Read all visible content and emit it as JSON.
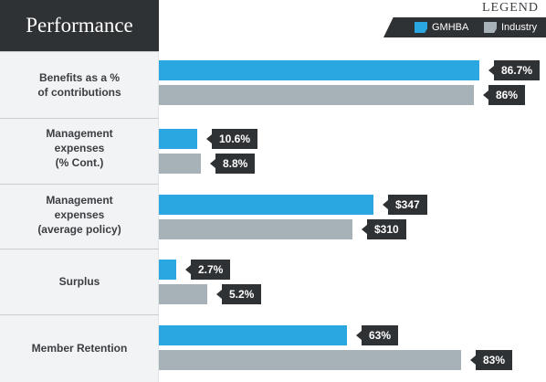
{
  "title": "Performance",
  "legend": {
    "title": "LEGEND",
    "items": [
      {
        "name": "GMHBA",
        "color": "#2aa7e0"
      },
      {
        "name": "Industry",
        "color": "#a7b1b8"
      }
    ]
  },
  "chart_data": {
    "type": "bar",
    "orientation": "horizontal",
    "categories": [
      "Benefits as a % of contributions",
      "Management expenses (% Cont.)",
      "Management expenses (average policy)",
      "Surplus",
      "Member Retention"
    ],
    "category_lines": [
      [
        "Benefits as a %",
        "of contributions"
      ],
      [
        "Management",
        "expenses",
        "(% Cont.)"
      ],
      [
        "Management",
        "expenses",
        "(average policy)"
      ],
      [
        "Surplus"
      ],
      [
        "Member Retention"
      ]
    ],
    "series": [
      {
        "name": "GMHBA",
        "color": "#2aa7e0",
        "values": [
          86.7,
          10.6,
          347,
          2.7,
          63
        ],
        "labels": [
          "86.7%",
          "10.6%",
          "$347",
          "2.7%",
          "63%"
        ]
      },
      {
        "name": "Industry",
        "color": "#a7b1b8",
        "values": [
          86,
          8.8,
          310,
          5.2,
          83
        ],
        "labels": [
          "86%",
          "8.8%",
          "$310",
          "5.2%",
          "83%"
        ]
      }
    ],
    "bar_fraction": [
      [
        0.907,
        0.108,
        0.606,
        0.049,
        0.533
      ],
      [
        0.892,
        0.12,
        0.548,
        0.136,
        0.855
      ]
    ],
    "legend_position": "top-right",
    "grid": false
  }
}
